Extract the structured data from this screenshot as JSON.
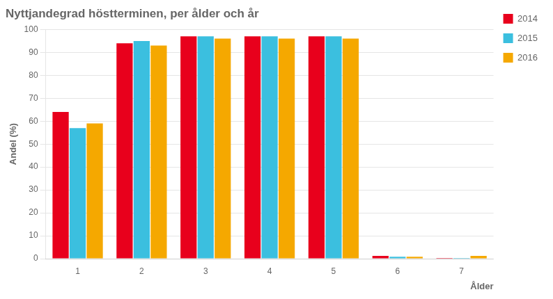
{
  "chart_data": {
    "type": "bar",
    "title": "Nyttjandegrad höstterminen, per ålder och år",
    "xlabel": "Ålder",
    "ylabel": "Andel (%)",
    "categories": [
      1,
      2,
      3,
      4,
      5,
      6,
      7
    ],
    "series": [
      {
        "name": "2014",
        "color": "#E8001C",
        "values": [
          64,
          94,
          97,
          97,
          97,
          1.2,
          0.3
        ]
      },
      {
        "name": "2015",
        "color": "#3BBFDF",
        "values": [
          57,
          95,
          97,
          97,
          97,
          0.8,
          0.3
        ]
      },
      {
        "name": "2016",
        "color": "#F5A800",
        "values": [
          59,
          93,
          96,
          96,
          96,
          0.8,
          1.2
        ]
      }
    ],
    "ylim": [
      0,
      100
    ],
    "yticks": [
      0,
      10,
      20,
      30,
      40,
      50,
      60,
      70,
      80,
      90,
      100
    ],
    "grid": true,
    "legend": "right"
  }
}
